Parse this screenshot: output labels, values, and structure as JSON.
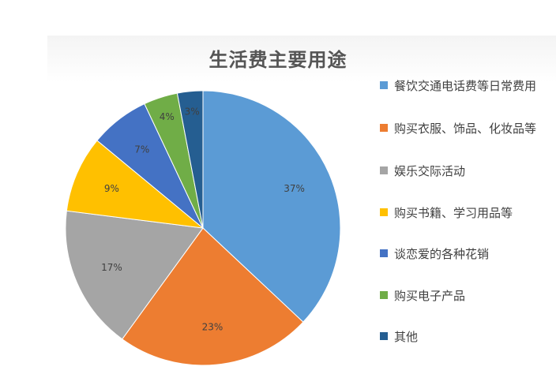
{
  "chart_data": {
    "type": "pie",
    "title": "生活费主要用途",
    "slices": [
      {
        "label": "餐饮交通电话费等日常费用",
        "value": 37,
        "value_label": "37%",
        "color": "#5B9BD5"
      },
      {
        "label": "购买衣服、饰品、化妆品等",
        "value": 23,
        "value_label": "23%",
        "color": "#ED7D31"
      },
      {
        "label": "娱乐交际活动",
        "value": 17,
        "value_label": "17%",
        "color": "#A5A5A5"
      },
      {
        "label": "购买书籍、学习用品等",
        "value": 9,
        "value_label": "9%",
        "color": "#FFC000"
      },
      {
        "label": "谈恋爱的各种花销",
        "value": 7,
        "value_label": "7%",
        "color": "#4472C4"
      },
      {
        "label": "购买电子产品",
        "value": 4,
        "value_label": "4%",
        "color": "#70AD47"
      },
      {
        "label": "其他",
        "value": 3,
        "value_label": "3%",
        "color": "#255E91"
      }
    ],
    "legend_position": "right"
  }
}
